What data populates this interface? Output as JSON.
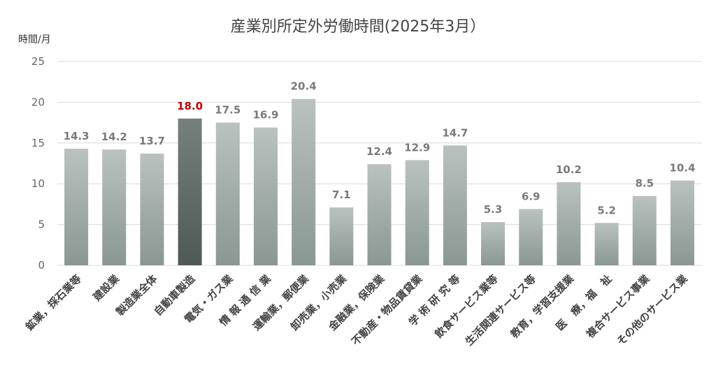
{
  "chart_data": {
    "type": "bar",
    "title": "産業別所定外労働時間(2025年3月）",
    "ylabel": "時間/月",
    "ylim": [
      0,
      25
    ],
    "yticks": [
      0,
      5,
      10,
      15,
      20,
      25
    ],
    "grid": true,
    "categories": [
      "鉱業，採石業等",
      "建設業",
      "製造業全体",
      "自動車製造",
      "電気・ガス業",
      "情 報 通 信 業",
      "運輸業，郵便業",
      "卸売業，小売業",
      "金融業，保険業",
      "不動産・物品賃貸業",
      "学 術 研 究 等",
      "飲食サービス業等",
      "生活関連サービス等",
      "教育，学習支援業",
      "医　療，福　祉",
      "複合サービス事業",
      "その他のサービス業"
    ],
    "value_labels": [
      "14.3",
      "14.2",
      "13.7",
      "18.0",
      "17.5",
      "16.9",
      "20.4",
      "7.1",
      "12.4",
      "12.9",
      "14.7",
      "5.3",
      "6.9",
      "10.2",
      "5.2",
      "8.5",
      "10.4"
    ],
    "values": [
      14.3,
      14.2,
      13.7,
      18.0,
      17.5,
      16.9,
      20.4,
      7.1,
      12.4,
      12.9,
      14.7,
      5.3,
      6.9,
      10.2,
      5.2,
      8.5,
      10.4
    ],
    "highlight": "自動車製造",
    "colors": {
      "bar_top": "#b9c2bf",
      "bar_bottom": "#8a9792",
      "highlight_top": "#76807c",
      "highlight_bottom": "#4e5955",
      "highlight_label": "#c00000",
      "grid": "#d9d9d9"
    }
  }
}
